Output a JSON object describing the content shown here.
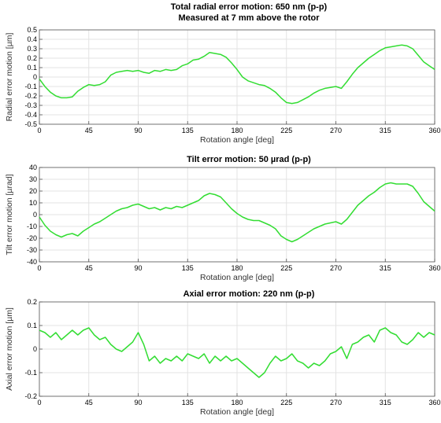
{
  "chart_data": [
    {
      "type": "line",
      "title": [
        "Total radial error motion: 650 nm (p-p)",
        "Measured at 7 mm above the rotor"
      ],
      "xlabel": "Rotation angle [deg]",
      "ylabel": "Radial error motion [µm]",
      "xlim": [
        0,
        360
      ],
      "ylim": [
        -0.5,
        0.5
      ],
      "xticks": [
        0,
        45,
        90,
        135,
        180,
        225,
        270,
        315,
        360
      ],
      "yticks": [
        -0.5,
        -0.4,
        -0.3,
        -0.2,
        -0.1,
        0,
        0.1,
        0.2,
        0.3,
        0.4,
        0.5
      ],
      "ytick_labels": [
        "-0.5",
        "-0.4",
        "-0.3",
        "-0.2",
        "-0.1",
        "0",
        "0.1",
        "0.2",
        "0.3",
        "0.4",
        "0.5"
      ],
      "grid": true,
      "line_color": "#33dd33",
      "series": [
        {
          "x": [
            0,
            5,
            10,
            15,
            20,
            25,
            30,
            35,
            40,
            45,
            50,
            55,
            60,
            65,
            70,
            75,
            80,
            85,
            90,
            95,
            100,
            105,
            110,
            115,
            120,
            125,
            130,
            135,
            140,
            145,
            150,
            155,
            160,
            165,
            170,
            175,
            180,
            185,
            190,
            195,
            200,
            205,
            210,
            215,
            220,
            225,
            230,
            235,
            240,
            245,
            250,
            255,
            260,
            265,
            270,
            275,
            280,
            285,
            290,
            295,
            300,
            305,
            310,
            315,
            320,
            325,
            330,
            335,
            340,
            345,
            350,
            355,
            360
          ],
          "values": [
            -0.02,
            -0.1,
            -0.16,
            -0.2,
            -0.22,
            -0.22,
            -0.21,
            -0.15,
            -0.11,
            -0.08,
            -0.09,
            -0.08,
            -0.05,
            0.02,
            0.05,
            0.06,
            0.07,
            0.06,
            0.07,
            0.05,
            0.04,
            0.07,
            0.06,
            0.08,
            0.07,
            0.08,
            0.12,
            0.14,
            0.18,
            0.19,
            0.22,
            0.26,
            0.25,
            0.24,
            0.21,
            0.15,
            0.08,
            0.0,
            -0.04,
            -0.06,
            -0.08,
            -0.09,
            -0.12,
            -0.16,
            -0.22,
            -0.27,
            -0.28,
            -0.27,
            -0.24,
            -0.21,
            -0.17,
            -0.14,
            -0.12,
            -0.11,
            -0.1,
            -0.12,
            -0.05,
            0.03,
            0.1,
            0.15,
            0.2,
            0.24,
            0.28,
            0.31,
            0.32,
            0.33,
            0.34,
            0.33,
            0.3,
            0.23,
            0.16,
            0.12,
            0.08
          ]
        }
      ]
    },
    {
      "type": "line",
      "title": [
        "Tilt error motion: 50 µrad (p-p)"
      ],
      "xlabel": "Rotation angle [deg]",
      "ylabel": "Tilt error motion [µrad]",
      "xlim": [
        0,
        360
      ],
      "ylim": [
        -40,
        40
      ],
      "xticks": [
        0,
        45,
        90,
        135,
        180,
        225,
        270,
        315,
        360
      ],
      "yticks": [
        -40,
        -30,
        -20,
        -10,
        0,
        10,
        20,
        30,
        40
      ],
      "ytick_labels": [
        "-40",
        "-30",
        "-20",
        "-10",
        "0",
        "10",
        "20",
        "30",
        "40"
      ],
      "grid": true,
      "line_color": "#33dd33",
      "series": [
        {
          "x": [
            0,
            5,
            10,
            15,
            20,
            25,
            30,
            35,
            40,
            45,
            50,
            55,
            60,
            65,
            70,
            75,
            80,
            85,
            90,
            95,
            100,
            105,
            110,
            115,
            120,
            125,
            130,
            135,
            140,
            145,
            150,
            155,
            160,
            165,
            170,
            175,
            180,
            185,
            190,
            195,
            200,
            205,
            210,
            215,
            220,
            225,
            230,
            235,
            240,
            245,
            250,
            255,
            260,
            265,
            270,
            275,
            280,
            285,
            290,
            295,
            300,
            305,
            310,
            315,
            320,
            325,
            330,
            335,
            340,
            345,
            350,
            355,
            360
          ],
          "values": [
            -2,
            -9,
            -14,
            -17,
            -19,
            -17,
            -16,
            -18,
            -14,
            -11,
            -8,
            -6,
            -3,
            0,
            3,
            5,
            6,
            8,
            9,
            7,
            5,
            6,
            4,
            6,
            5,
            7,
            6,
            8,
            10,
            12,
            16,
            18,
            17,
            15,
            10,
            5,
            1,
            -2,
            -4,
            -5,
            -5,
            -7,
            -9,
            -12,
            -18,
            -21,
            -23,
            -21,
            -18,
            -15,
            -12,
            -10,
            -8,
            -7,
            -6,
            -8,
            -4,
            2,
            8,
            12,
            16,
            19,
            23,
            26,
            27,
            26,
            26,
            26,
            24,
            18,
            11,
            7,
            3
          ]
        }
      ]
    },
    {
      "type": "line",
      "title": [
        "Axial error motion: 220 nm (p-p)"
      ],
      "xlabel": "Rotation angle [deg]",
      "ylabel": "Axial error motion [µm]",
      "xlim": [
        0,
        360
      ],
      "ylim": [
        -0.2,
        0.2
      ],
      "xticks": [
        0,
        45,
        90,
        135,
        180,
        225,
        270,
        315,
        360
      ],
      "yticks": [
        -0.2,
        -0.1,
        0,
        0.1,
        0.2
      ],
      "ytick_labels": [
        "-0.2",
        "-0.1",
        "0",
        "0.1",
        "0.2"
      ],
      "grid": true,
      "line_color": "#33dd33",
      "series": [
        {
          "x": [
            0,
            5,
            10,
            15,
            20,
            25,
            30,
            35,
            40,
            45,
            50,
            55,
            60,
            65,
            70,
            75,
            80,
            85,
            90,
            95,
            100,
            105,
            110,
            115,
            120,
            125,
            130,
            135,
            140,
            145,
            150,
            155,
            160,
            165,
            170,
            175,
            180,
            185,
            190,
            195,
            200,
            205,
            210,
            215,
            220,
            225,
            230,
            235,
            240,
            245,
            250,
            255,
            260,
            265,
            270,
            275,
            280,
            285,
            290,
            295,
            300,
            305,
            310,
            315,
            320,
            325,
            330,
            335,
            340,
            345,
            350,
            355,
            360
          ],
          "values": [
            0.08,
            0.07,
            0.05,
            0.07,
            0.04,
            0.06,
            0.08,
            0.06,
            0.08,
            0.09,
            0.06,
            0.04,
            0.05,
            0.02,
            0.0,
            -0.01,
            0.01,
            0.03,
            0.07,
            0.02,
            -0.05,
            -0.03,
            -0.06,
            -0.04,
            -0.05,
            -0.03,
            -0.05,
            -0.02,
            -0.03,
            -0.04,
            -0.02,
            -0.06,
            -0.03,
            -0.05,
            -0.03,
            -0.05,
            -0.04,
            -0.06,
            -0.08,
            -0.1,
            -0.12,
            -0.1,
            -0.06,
            -0.03,
            -0.05,
            -0.04,
            -0.02,
            -0.05,
            -0.06,
            -0.08,
            -0.06,
            -0.07,
            -0.05,
            -0.02,
            -0.01,
            0.01,
            -0.04,
            0.02,
            0.03,
            0.05,
            0.06,
            0.03,
            0.08,
            0.09,
            0.07,
            0.06,
            0.03,
            0.02,
            0.04,
            0.07,
            0.05,
            0.07,
            0.06
          ]
        }
      ]
    }
  ]
}
